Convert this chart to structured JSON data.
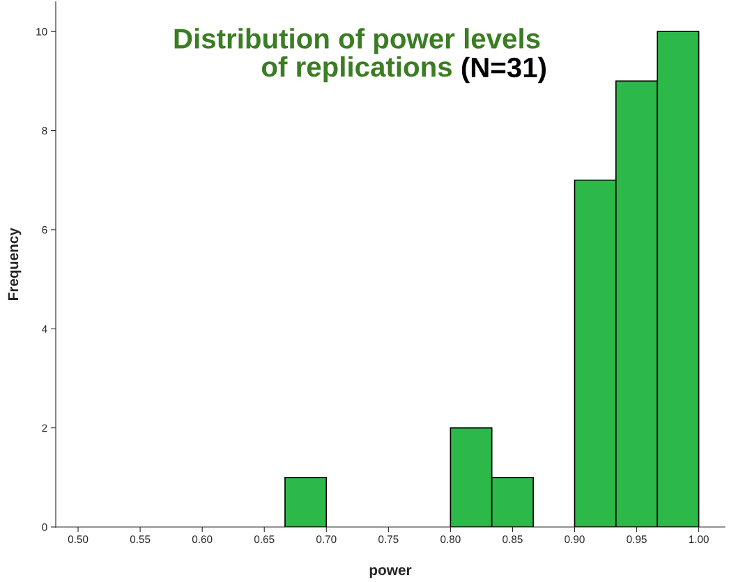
{
  "chart_data": {
    "type": "histogram",
    "title": "Distribution of power levels\nof replications",
    "xlabel": "power",
    "ylabel": "Frequency",
    "annotations": [
      "(N=31)"
    ],
    "bins": [
      0.6667,
      0.7,
      0.7333,
      0.7667,
      0.8,
      0.8333,
      0.8667,
      0.9,
      0.9333,
      0.9667,
      1.0
    ],
    "values": [
      1,
      0,
      0,
      0,
      2,
      1,
      0,
      7,
      9,
      10
    ],
    "color": "#2db84a",
    "xlim": [
      0.482,
      1.021
    ],
    "xticks": [
      {
        "value": 0.5,
        "label": "0.50"
      },
      {
        "value": 0.55,
        "label": "0.55"
      },
      {
        "value": 0.6,
        "label": "0.60"
      },
      {
        "value": 0.65,
        "label": "0.65"
      },
      {
        "value": 0.7,
        "label": "0.70"
      },
      {
        "value": 0.75,
        "label": "0.75"
      },
      {
        "value": 0.8,
        "label": "0.80"
      },
      {
        "value": 0.85,
        "label": "0.85"
      },
      {
        "value": 0.9,
        "label": "0.90"
      },
      {
        "value": 0.95,
        "label": "0.95"
      },
      {
        "value": 1.0,
        "label": "1.00"
      }
    ],
    "ylim": [
      0,
      10.6
    ],
    "yticks": [
      0,
      2,
      4,
      6,
      8,
      10
    ],
    "grid": false,
    "legend": false
  }
}
